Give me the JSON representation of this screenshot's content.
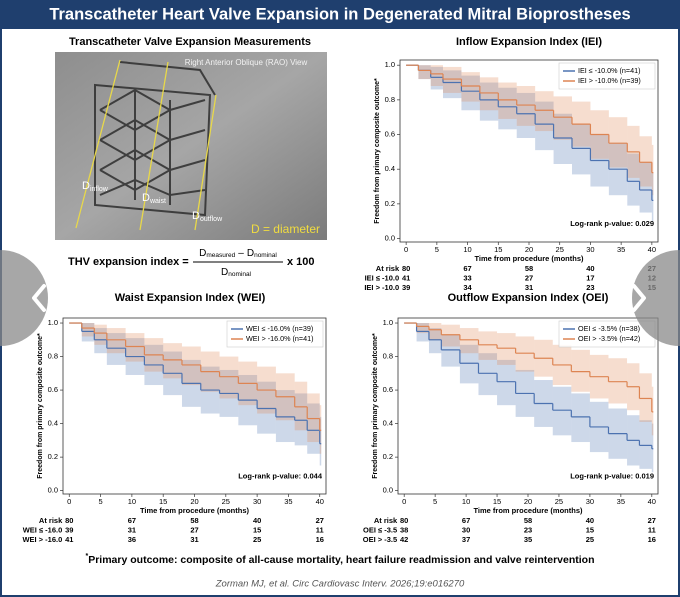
{
  "header": {
    "title": "Transcatheter Heart Valve Expansion in Degenerated Mitral Bioprostheses"
  },
  "measurement_panel": {
    "title": "Transcatheter Valve Expansion Measurements",
    "view_label": "Right Anterior Oblique (RAO) View",
    "inflow": {
      "main": "D",
      "sub": "inflow"
    },
    "waist": {
      "main": "D",
      "sub": "waist"
    },
    "outflow": {
      "main": "D",
      "sub": "outflow"
    },
    "legend": "D = diameter"
  },
  "formula": {
    "lhs": "THV expansion index =",
    "num_a": {
      "main": "D",
      "sub": "measured"
    },
    "minus": "–",
    "num_b": {
      "main": "D",
      "sub": "nominal"
    },
    "den": {
      "main": "D",
      "sub": "nominal"
    },
    "rhs": "x 100"
  },
  "chart_data": [
    {
      "type": "km",
      "title": "Inflow Expansion Index (IEI)",
      "x_label": "Time from procedure (months)",
      "y_label": "Freedom from primary composite outcome*",
      "xlim": [
        -1,
        41
      ],
      "ylim": [
        -0.02,
        1.03
      ],
      "xticks": [
        0,
        5,
        10,
        15,
        20,
        25,
        30,
        35,
        40
      ],
      "yticks": [
        {
          "value": 0,
          "label": "0.0"
        },
        {
          "value": 0.2,
          "label": "0.2"
        },
        {
          "value": 0.4,
          "label": "0.4"
        },
        {
          "value": 0.6,
          "label": "0.6"
        },
        {
          "value": 0.8,
          "label": "0.8"
        },
        {
          "value": 1,
          "label": "1.0"
        }
      ],
      "x": [
        0,
        2,
        4,
        6,
        9,
        12,
        15,
        18,
        21,
        24,
        27,
        30,
        33,
        36,
        38,
        40
      ],
      "series": [
        {
          "name": "IEI ≤ -10.0% (n=41)",
          "color": "#4c72b0",
          "values": [
            1.0,
            0.97,
            0.93,
            0.9,
            0.85,
            0.8,
            0.76,
            0.72,
            0.66,
            0.58,
            0.52,
            0.45,
            0.4,
            0.33,
            0.28,
            0.22
          ],
          "ci_lower": [
            1.0,
            0.92,
            0.86,
            0.81,
            0.74,
            0.68,
            0.63,
            0.58,
            0.51,
            0.43,
            0.37,
            0.3,
            0.25,
            0.19,
            0.15,
            0.1
          ],
          "ci_upper": [
            1.0,
            1.0,
            0.99,
            0.97,
            0.94,
            0.9,
            0.87,
            0.84,
            0.79,
            0.72,
            0.66,
            0.6,
            0.55,
            0.49,
            0.44,
            0.38
          ]
        },
        {
          "name": "IEI > -10.0% (n=39)",
          "color": "#dd8452",
          "values": [
            1.0,
            0.97,
            0.95,
            0.92,
            0.88,
            0.84,
            0.8,
            0.77,
            0.74,
            0.7,
            0.66,
            0.6,
            0.55,
            0.5,
            0.44,
            0.38
          ],
          "ci_lower": [
            1.0,
            0.92,
            0.88,
            0.84,
            0.79,
            0.74,
            0.69,
            0.65,
            0.62,
            0.57,
            0.53,
            0.46,
            0.41,
            0.35,
            0.3,
            0.25
          ],
          "ci_upper": [
            1.0,
            1.0,
            1.0,
            0.99,
            0.96,
            0.93,
            0.9,
            0.88,
            0.85,
            0.82,
            0.79,
            0.74,
            0.7,
            0.65,
            0.59,
            0.54
          ]
        }
      ],
      "annotation": "Log-rank p-value: 0.029",
      "at_risk": {
        "times": [
          0,
          10,
          20,
          30,
          40
        ],
        "rows": [
          {
            "label": "At risk",
            "values": [
              80,
              67,
              58,
              40,
              27
            ]
          },
          {
            "label": "IEI ≤ -10.0",
            "values": [
              41,
              33,
              27,
              17,
              12
            ]
          },
          {
            "label": "IEI > -10.0",
            "values": [
              39,
              34,
              31,
              23,
              15
            ]
          }
        ]
      }
    },
    {
      "type": "km",
      "title": "Waist Expansion Index (WEI)",
      "x_label": "Time from procedure (months)",
      "y_label": "Freedom from primary composite outcome*",
      "xlim": [
        -1,
        41
      ],
      "ylim": [
        -0.02,
        1.03
      ],
      "xticks": [
        0,
        5,
        10,
        15,
        20,
        25,
        30,
        35,
        40
      ],
      "yticks": [
        {
          "value": 0,
          "label": "0.0"
        },
        {
          "value": 0.2,
          "label": "0.2"
        },
        {
          "value": 0.4,
          "label": "0.4"
        },
        {
          "value": 0.6,
          "label": "0.6"
        },
        {
          "value": 0.8,
          "label": "0.8"
        },
        {
          "value": 1,
          "label": "1.0"
        }
      ],
      "x": [
        0,
        2,
        4,
        6,
        9,
        12,
        15,
        18,
        21,
        24,
        27,
        30,
        33,
        36,
        38,
        40
      ],
      "series": [
        {
          "name": "WEI ≤ -16.0% (n=39)",
          "color": "#4c72b0",
          "values": [
            1.0,
            0.95,
            0.9,
            0.85,
            0.8,
            0.75,
            0.7,
            0.64,
            0.6,
            0.58,
            0.54,
            0.49,
            0.44,
            0.42,
            0.36,
            0.28
          ],
          "ci_lower": [
            1.0,
            0.89,
            0.82,
            0.75,
            0.69,
            0.63,
            0.57,
            0.5,
            0.46,
            0.44,
            0.39,
            0.34,
            0.29,
            0.27,
            0.22,
            0.15
          ],
          "ci_upper": [
            1.0,
            1.0,
            0.97,
            0.94,
            0.91,
            0.87,
            0.83,
            0.78,
            0.74,
            0.72,
            0.69,
            0.65,
            0.6,
            0.58,
            0.52,
            0.44
          ]
        },
        {
          "name": "WEI > -16.0% (n=41)",
          "color": "#dd8452",
          "values": [
            1.0,
            0.97,
            0.94,
            0.9,
            0.86,
            0.81,
            0.78,
            0.75,
            0.71,
            0.68,
            0.64,
            0.6,
            0.56,
            0.5,
            0.43,
            0.36
          ],
          "ci_lower": [
            1.0,
            0.92,
            0.87,
            0.82,
            0.77,
            0.71,
            0.67,
            0.63,
            0.59,
            0.55,
            0.51,
            0.46,
            0.42,
            0.36,
            0.29,
            0.22
          ],
          "ci_upper": [
            1.0,
            1.0,
            0.99,
            0.97,
            0.94,
            0.91,
            0.88,
            0.86,
            0.83,
            0.8,
            0.77,
            0.74,
            0.7,
            0.65,
            0.58,
            0.51
          ]
        }
      ],
      "annotation": "Log-rank p-value: 0.044",
      "at_risk": {
        "times": [
          0,
          10,
          20,
          30,
          40
        ],
        "rows": [
          {
            "label": "At risk",
            "values": [
              80,
              67,
              58,
              40,
              27
            ]
          },
          {
            "label": "WEI ≤ -16.0",
            "values": [
              39,
              31,
              27,
              15,
              11
            ]
          },
          {
            "label": "WEI > -16.0",
            "values": [
              41,
              36,
              31,
              25,
              16
            ]
          }
        ]
      }
    },
    {
      "type": "km",
      "title": "Outflow Expansion Index (OEI)",
      "x_label": "Time from procedure (months)",
      "y_label": "Freedom from primary composite outcome*",
      "xlim": [
        -1,
        41
      ],
      "ylim": [
        -0.02,
        1.03
      ],
      "xticks": [
        0,
        5,
        10,
        15,
        20,
        25,
        30,
        35,
        40
      ],
      "yticks": [
        {
          "value": 0,
          "label": "0.0"
        },
        {
          "value": 0.2,
          "label": "0.2"
        },
        {
          "value": 0.4,
          "label": "0.4"
        },
        {
          "value": 0.6,
          "label": "0.6"
        },
        {
          "value": 0.8,
          "label": "0.8"
        },
        {
          "value": 1,
          "label": "1.0"
        }
      ],
      "x": [
        0,
        2,
        4,
        6,
        9,
        12,
        15,
        18,
        21,
        24,
        27,
        30,
        33,
        36,
        38,
        40
      ],
      "series": [
        {
          "name": "OEI ≤ -3.5% (n=38)",
          "color": "#4c72b0",
          "values": [
            1.0,
            0.95,
            0.9,
            0.84,
            0.76,
            0.7,
            0.65,
            0.58,
            0.52,
            0.48,
            0.44,
            0.38,
            0.34,
            0.3,
            0.27,
            0.25
          ],
          "ci_lower": [
            1.0,
            0.89,
            0.82,
            0.74,
            0.64,
            0.57,
            0.51,
            0.44,
            0.38,
            0.33,
            0.29,
            0.23,
            0.19,
            0.15,
            0.13,
            0.11
          ],
          "ci_upper": [
            1.0,
            1.0,
            0.97,
            0.93,
            0.87,
            0.82,
            0.78,
            0.72,
            0.66,
            0.62,
            0.58,
            0.53,
            0.49,
            0.45,
            0.42,
            0.4
          ]
        },
        {
          "name": "OEI > -3.5% (n=42)",
          "color": "#dd8452",
          "values": [
            1.0,
            0.98,
            0.96,
            0.93,
            0.9,
            0.87,
            0.85,
            0.82,
            0.79,
            0.75,
            0.71,
            0.68,
            0.65,
            0.62,
            0.55,
            0.47
          ],
          "ci_lower": [
            1.0,
            0.94,
            0.9,
            0.86,
            0.82,
            0.78,
            0.75,
            0.71,
            0.68,
            0.63,
            0.59,
            0.55,
            0.52,
            0.48,
            0.41,
            0.33
          ],
          "ci_upper": [
            1.0,
            1.0,
            1.0,
            0.99,
            0.97,
            0.95,
            0.94,
            0.92,
            0.9,
            0.87,
            0.84,
            0.81,
            0.79,
            0.76,
            0.7,
            0.62
          ]
        }
      ],
      "annotation": "Log-rank p-value: 0.019",
      "at_risk": {
        "times": [
          0,
          10,
          20,
          30,
          40
        ],
        "rows": [
          {
            "label": "At risk",
            "values": [
              80,
              67,
              58,
              40,
              27
            ]
          },
          {
            "label": "OEI ≤ -3.5",
            "values": [
              38,
              30,
              23,
              15,
              11
            ]
          },
          {
            "label": "OEI > -3.5",
            "values": [
              42,
              37,
              35,
              25,
              16
            ]
          }
        ]
      }
    }
  ],
  "footnote": {
    "mark": "*",
    "text": "Primary outcome: composite of all-cause mortality, heart failure readmission and valve reintervention"
  },
  "citation": "Zorman MJ, et al. Circ Cardiovasc Interv. 2026;19:e016270"
}
